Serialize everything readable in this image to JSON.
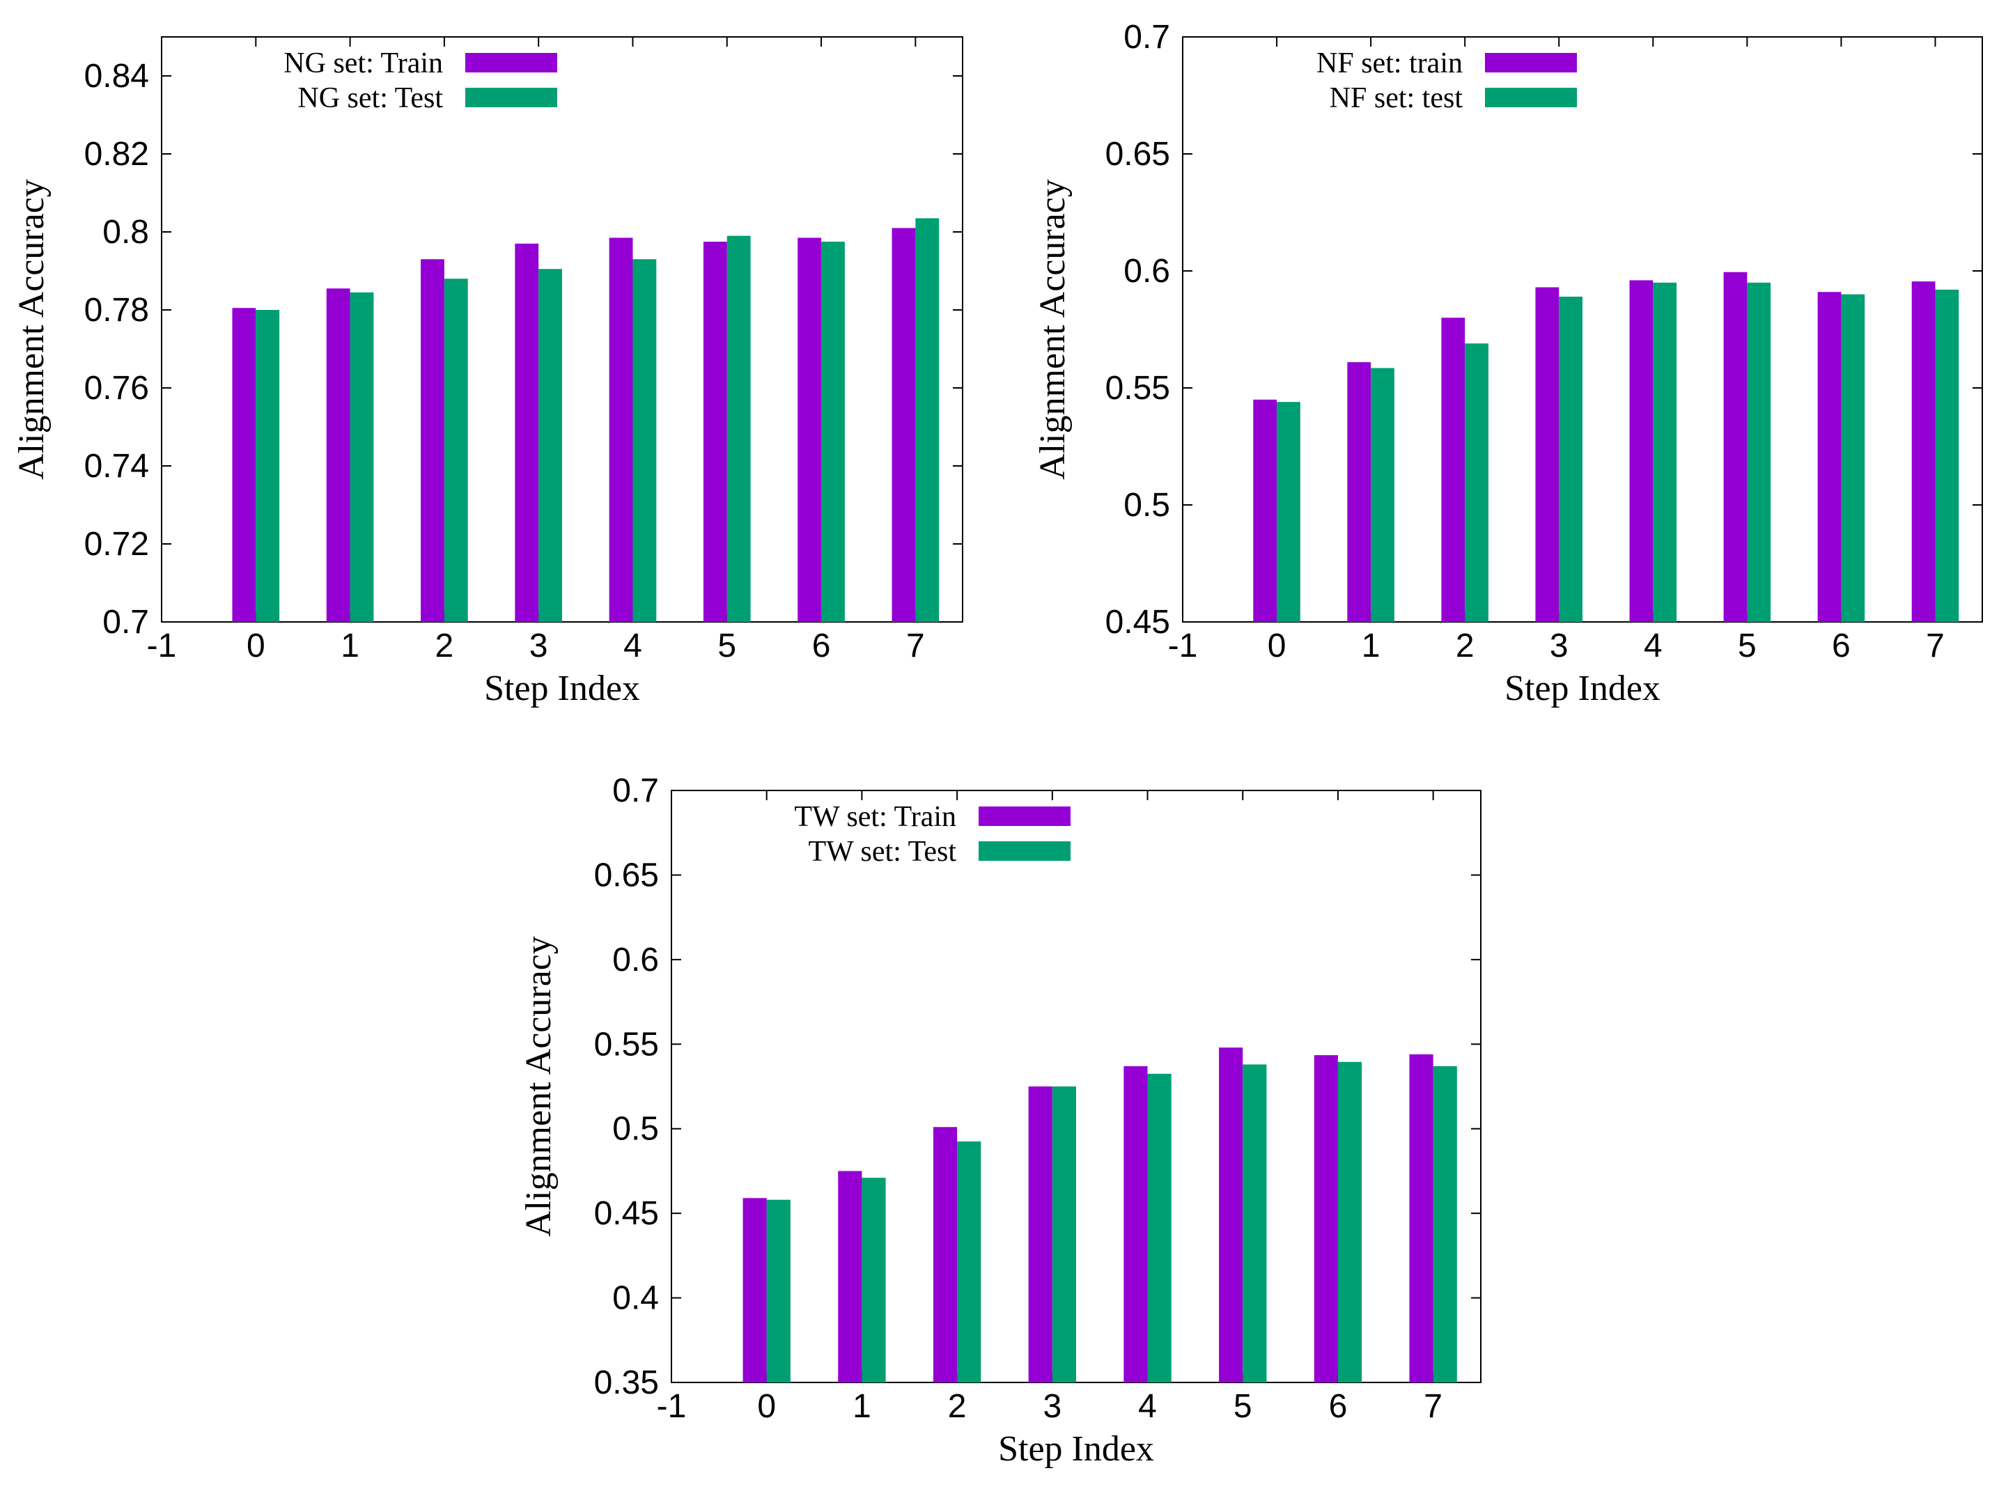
{
  "chart_data": [
    {
      "type": "bar",
      "title": "",
      "xlabel": "Step Index",
      "ylabel": "Alignment Accuracy",
      "xlim": [
        -1,
        7.5
      ],
      "ylim": [
        0.7,
        0.85
      ],
      "yticks": [
        "0.7",
        "0.72",
        "0.74",
        "0.76",
        "0.78",
        "0.8",
        "0.82",
        "0.84"
      ],
      "xticks": [
        "-1",
        "0",
        "1",
        "2",
        "3",
        "4",
        "5",
        "6",
        "7"
      ],
      "categories": [
        0,
        1,
        2,
        3,
        4,
        5,
        6,
        7
      ],
      "legend_position": "top-left",
      "series": [
        {
          "name": "NG set: Train",
          "color": "#9400d3",
          "values": [
            0.7805,
            0.7855,
            0.793,
            0.797,
            0.7985,
            0.7975,
            0.7985,
            0.801
          ]
        },
        {
          "name": "NG set: Test",
          "color": "#009e73",
          "values": [
            0.78,
            0.7845,
            0.788,
            0.7905,
            0.793,
            0.799,
            0.7975,
            0.8035
          ]
        }
      ]
    },
    {
      "type": "bar",
      "title": "",
      "xlabel": "Step Index",
      "ylabel": "Alignment Accuracy",
      "xlim": [
        -1,
        7.5
      ],
      "ylim": [
        0.45,
        0.7
      ],
      "yticks": [
        "0.45",
        "0.5",
        "0.55",
        "0.6",
        "0.65",
        "0.7"
      ],
      "xticks": [
        "-1",
        "0",
        "1",
        "2",
        "3",
        "4",
        "5",
        "6",
        "7"
      ],
      "categories": [
        0,
        1,
        2,
        3,
        4,
        5,
        6,
        7
      ],
      "legend_position": "top-left",
      "series": [
        {
          "name": "NF set: train",
          "color": "#9400d3",
          "values": [
            0.545,
            0.561,
            0.58,
            0.593,
            0.596,
            0.5995,
            0.591,
            0.5955
          ]
        },
        {
          "name": "NF set: test",
          "color": "#009e73",
          "values": [
            0.544,
            0.5585,
            0.569,
            0.589,
            0.595,
            0.595,
            0.59,
            0.592
          ]
        }
      ]
    },
    {
      "type": "bar",
      "title": "",
      "xlabel": "Step Index",
      "ylabel": "Alignment Accuracy",
      "xlim": [
        -1,
        7.5
      ],
      "ylim": [
        0.35,
        0.7
      ],
      "yticks": [
        "0.35",
        "0.4",
        "0.45",
        "0.5",
        "0.55",
        "0.6",
        "0.65",
        "0.7"
      ],
      "xticks": [
        "-1",
        "0",
        "1",
        "2",
        "3",
        "4",
        "5",
        "6",
        "7"
      ],
      "categories": [
        0,
        1,
        2,
        3,
        4,
        5,
        6,
        7
      ],
      "legend_position": "top-left",
      "series": [
        {
          "name": "TW set: Train",
          "color": "#9400d3",
          "values": [
            0.459,
            0.475,
            0.501,
            0.525,
            0.537,
            0.548,
            0.5435,
            0.544
          ]
        },
        {
          "name": "TW set: Test",
          "color": "#009e73",
          "values": [
            0.458,
            0.471,
            0.4925,
            0.525,
            0.5325,
            0.538,
            0.5395,
            0.537
          ]
        }
      ]
    }
  ]
}
